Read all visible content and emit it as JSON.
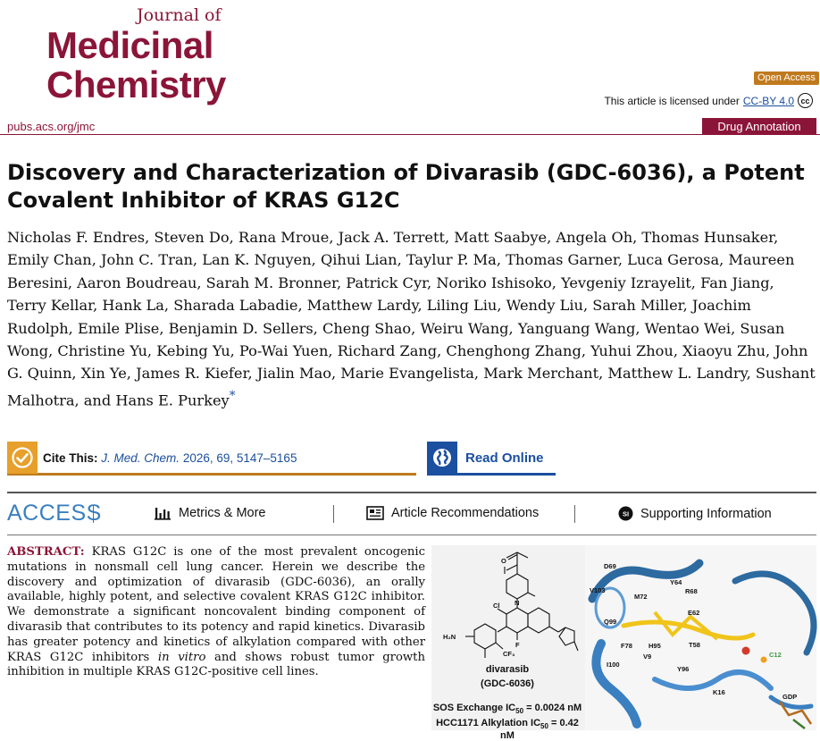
{
  "journal": {
    "small": "Journal of",
    "line1": "Medicinal",
    "line2": "Chemistry",
    "url": "pubs.acs.org/jmc"
  },
  "badges": {
    "open_access": "Open Access",
    "license_prefix": "This article is licensed under",
    "license_link": "CC-BY 4.0",
    "cc_icon": "cc-icon",
    "article_type": "Drug Annotation"
  },
  "article": {
    "title": "Discovery and Characterization of Divarasib (GDC-6036), a Potent Covalent Inhibitor of KRAS G12C",
    "authors": "Nicholas F. Endres, Steven Do, Rana Mroue, Jack A. Terrett, Matt Saabye, Angela Oh, Thomas Hunsaker, Emily Chan, John C. Tran, Lan K. Nguyen, Qihui Lian, Taylur P. Ma, Thomas Garner, Luca Gerosa, Maureen Beresini, Aaron Boudreau, Sarah M. Bronner, Patrick Cyr, Noriko Ishisoko, Yevgeniy Izrayelit, Fan Jiang, Terry Kellar, Hank La, Sharada Labadie, Matthew Lardy, Liling Liu, Wendy Liu, Sarah Miller, Joachim Rudolph, Emile Plise, Benjamin D. Sellers, Cheng Shao, Weiru Wang, Yanguang Wang, Wentao Wei, Susan Wong, Christine Yu, Kebing Yu, Po-Wai Yuen, Richard Zang, Chenghong Zhang, Yuhui Zhou, Xiaoyu Zhu, John G. Quinn, Xin Ye, James R. Kiefer, Jialin Mao, Marie Evangelista, Mark Merchant, Matthew L. Landry, Sushant Malhotra, and Hans E. Purkey",
    "corresponding_mark": "*"
  },
  "cite": {
    "label": "Cite This:",
    "journal_abbrev": "J. Med. Chem.",
    "details": "2026, 69, 5147–5165",
    "icon": "check-icon"
  },
  "read_online": {
    "label": "Read Online",
    "icon": "globe-icon"
  },
  "access_bar": {
    "label": "ACCESS",
    "items": [
      {
        "label": "Metrics & More",
        "icon": "bar-chart-icon"
      },
      {
        "label": "Article Recommendations",
        "icon": "newspaper-icon"
      },
      {
        "label": "Supporting Information",
        "icon": "si-icon"
      }
    ]
  },
  "abstract": {
    "label": "ABSTRACT:",
    "text_before_italic": "KRAS G12C is one of the most prevalent oncogenic mutations in nonsmall cell lung cancer. Herein we describe the discovery and optimization of divarasib (GDC-6036), an orally available, highly potent, and selective covalent KRAS G12C inhibitor. We demonstrate a significant noncovalent binding component of divarasib that contributes to its potency and rapid kinetics. Divarasib has greater potency and kinetics of alkylation compared with other KRAS G12C inhibitors",
    "italic": "in vitro",
    "text_after_italic": "and shows robust tumor growth inhibition in multiple KRAS G12C-positive cell lines."
  },
  "toc_graphic": {
    "compound_name": "divarasib",
    "compound_code": "(GDC-6036)",
    "sos_prefix": "SOS Exchange IC",
    "sos_sub": "50",
    "sos_value": "= 0.0024 nM",
    "hcc_prefix": "HCC1171 Alkylation IC",
    "hcc_sub": "50",
    "hcc_value": "= 0.42 nM",
    "atoms": {
      "cl": "Cl",
      "f": "F",
      "nh2": "H₂N",
      "cf3": "CF₃",
      "n": "N",
      "o": "O"
    },
    "residues": [
      "D69",
      "Y64",
      "R68",
      "M72",
      "V103",
      "E62",
      "Q99",
      "F78",
      "H95",
      "T58",
      "V9",
      "I100",
      "Y96",
      "C12",
      "K16",
      "GDP"
    ]
  }
}
